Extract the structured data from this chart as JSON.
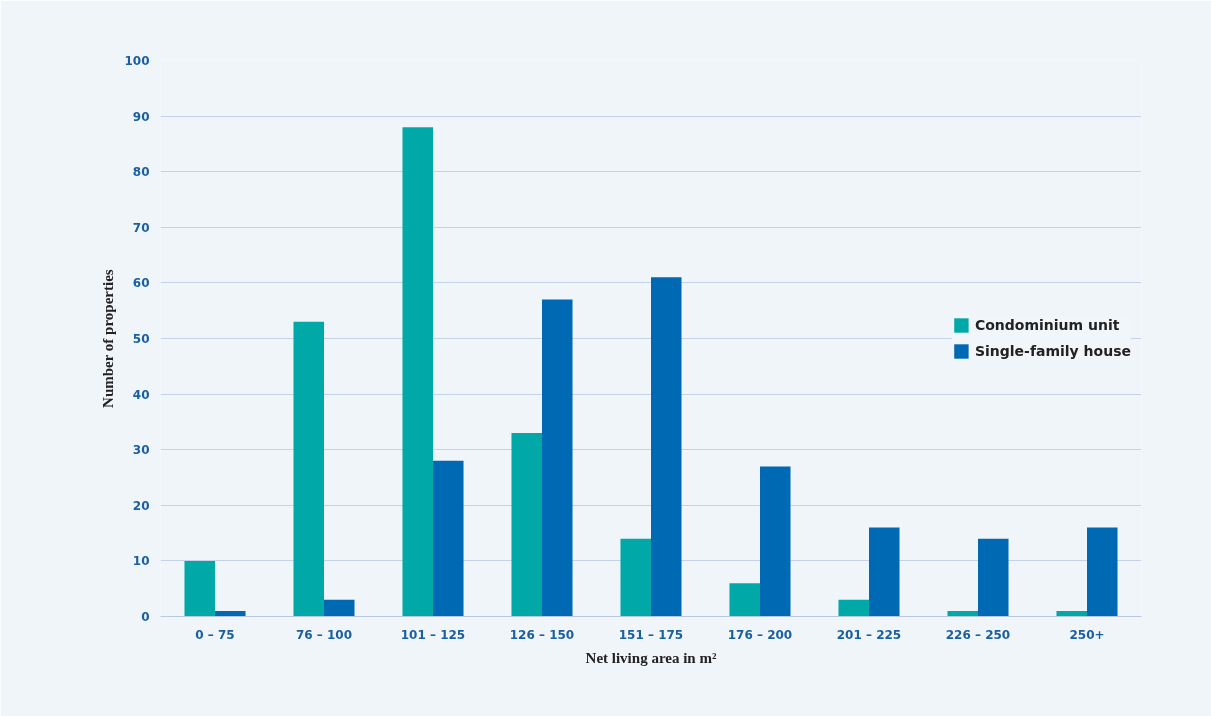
{
  "chart_data": {
    "type": "bar",
    "xlabel": "Net living area in m²",
    "ylabel": "Number of properties",
    "categories": [
      "0 – 75",
      "76 – 100",
      "101 – 125",
      "126 – 150",
      "151 – 175",
      "176 – 200",
      "201 – 225",
      "226 – 250",
      "250+"
    ],
    "series": [
      {
        "name": "Condominium unit",
        "color": "#00a9a8",
        "values": [
          10,
          53,
          88,
          33,
          14,
          6,
          3,
          1,
          1
        ]
      },
      {
        "name": "Single-family house",
        "color": "#0069b4",
        "values": [
          1,
          3,
          28,
          57,
          61,
          27,
          16,
          14,
          16
        ]
      }
    ],
    "ylim": [
      0,
      100
    ],
    "yticks": [
      0,
      10,
      20,
      30,
      40,
      50,
      60,
      70,
      80,
      90,
      100
    ],
    "grid": "y",
    "legend": "right"
  }
}
